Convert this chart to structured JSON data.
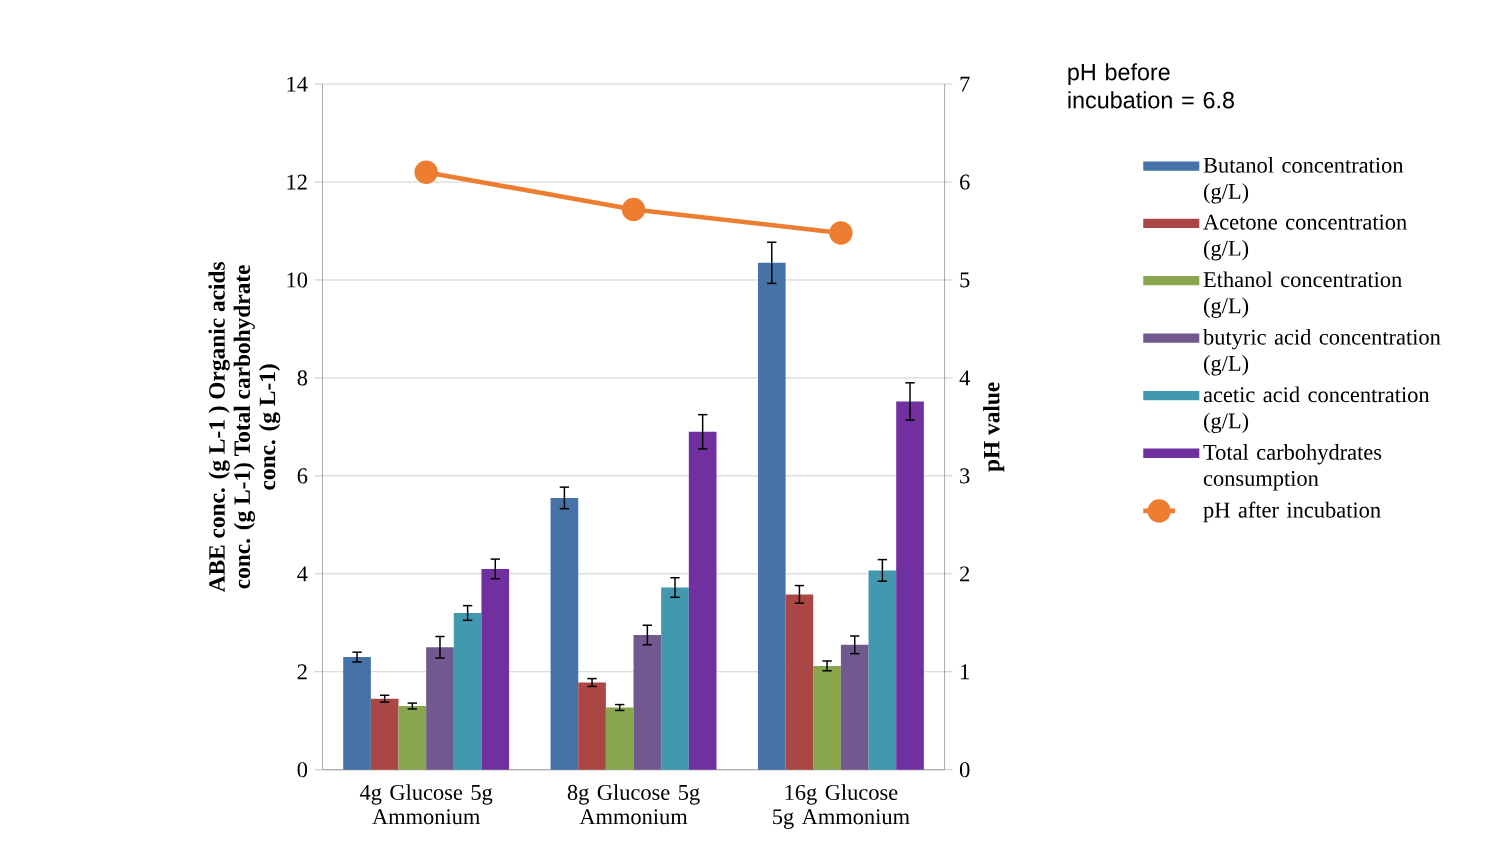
{
  "chart_data": {
    "type": "bar",
    "categories": [
      "4g Glucose 5g Ammonium",
      "8g Glucose 5g Ammonium",
      "16g Glucose 5g Ammonium"
    ],
    "ylabel": "ABE conc. (g L-1 ) Organic acids conc. (g L-1) Total carbohydrate conc. (g L-1)",
    "y2label": "pH value",
    "ylim": [
      0,
      14
    ],
    "yticks": [
      0,
      2,
      4,
      6,
      8,
      10,
      12,
      14
    ],
    "y2lim": [
      0,
      7
    ],
    "y2ticks": [
      0,
      1,
      2,
      3,
      4,
      5,
      6,
      7
    ],
    "grid": "y",
    "legend": "right",
    "annotations": [
      "pH before incubation = 6.8"
    ],
    "series": [
      {
        "name": "Butanol concentration (g/L)",
        "color": "#4572a7",
        "values": [
          2.3,
          5.55,
          10.35
        ],
        "errors": [
          0.1,
          0.22,
          0.42
        ]
      },
      {
        "name": "Acetone concentration (g/L)",
        "color": "#aa4643",
        "values": [
          1.45,
          1.78,
          3.58
        ],
        "errors": [
          0.07,
          0.08,
          0.18
        ]
      },
      {
        "name": "Ethanol concentration (g/L)",
        "color": "#89a54e",
        "values": [
          1.3,
          1.27,
          2.12
        ],
        "errors": [
          0.06,
          0.06,
          0.1
        ]
      },
      {
        "name": "butyric acid concentration (g/L)",
        "color": "#71588f",
        "values": [
          2.5,
          2.75,
          2.55
        ],
        "errors": [
          0.22,
          0.2,
          0.18
        ]
      },
      {
        "name": "acetic acid concentration (g/L)",
        "color": "#4198af",
        "values": [
          3.2,
          3.72,
          4.07
        ],
        "errors": [
          0.15,
          0.2,
          0.22
        ]
      },
      {
        "name": "Total carbohydrates consumption",
        "color": "#7030a0",
        "values": [
          4.1,
          6.9,
          7.52
        ],
        "errors": [
          0.2,
          0.35,
          0.38
        ]
      },
      {
        "name": "pH after incubation",
        "color": "#ed7d31",
        "type": "line",
        "axis": "y2",
        "marker": "circle",
        "values": [
          6.1,
          5.72,
          5.48
        ]
      }
    ]
  }
}
